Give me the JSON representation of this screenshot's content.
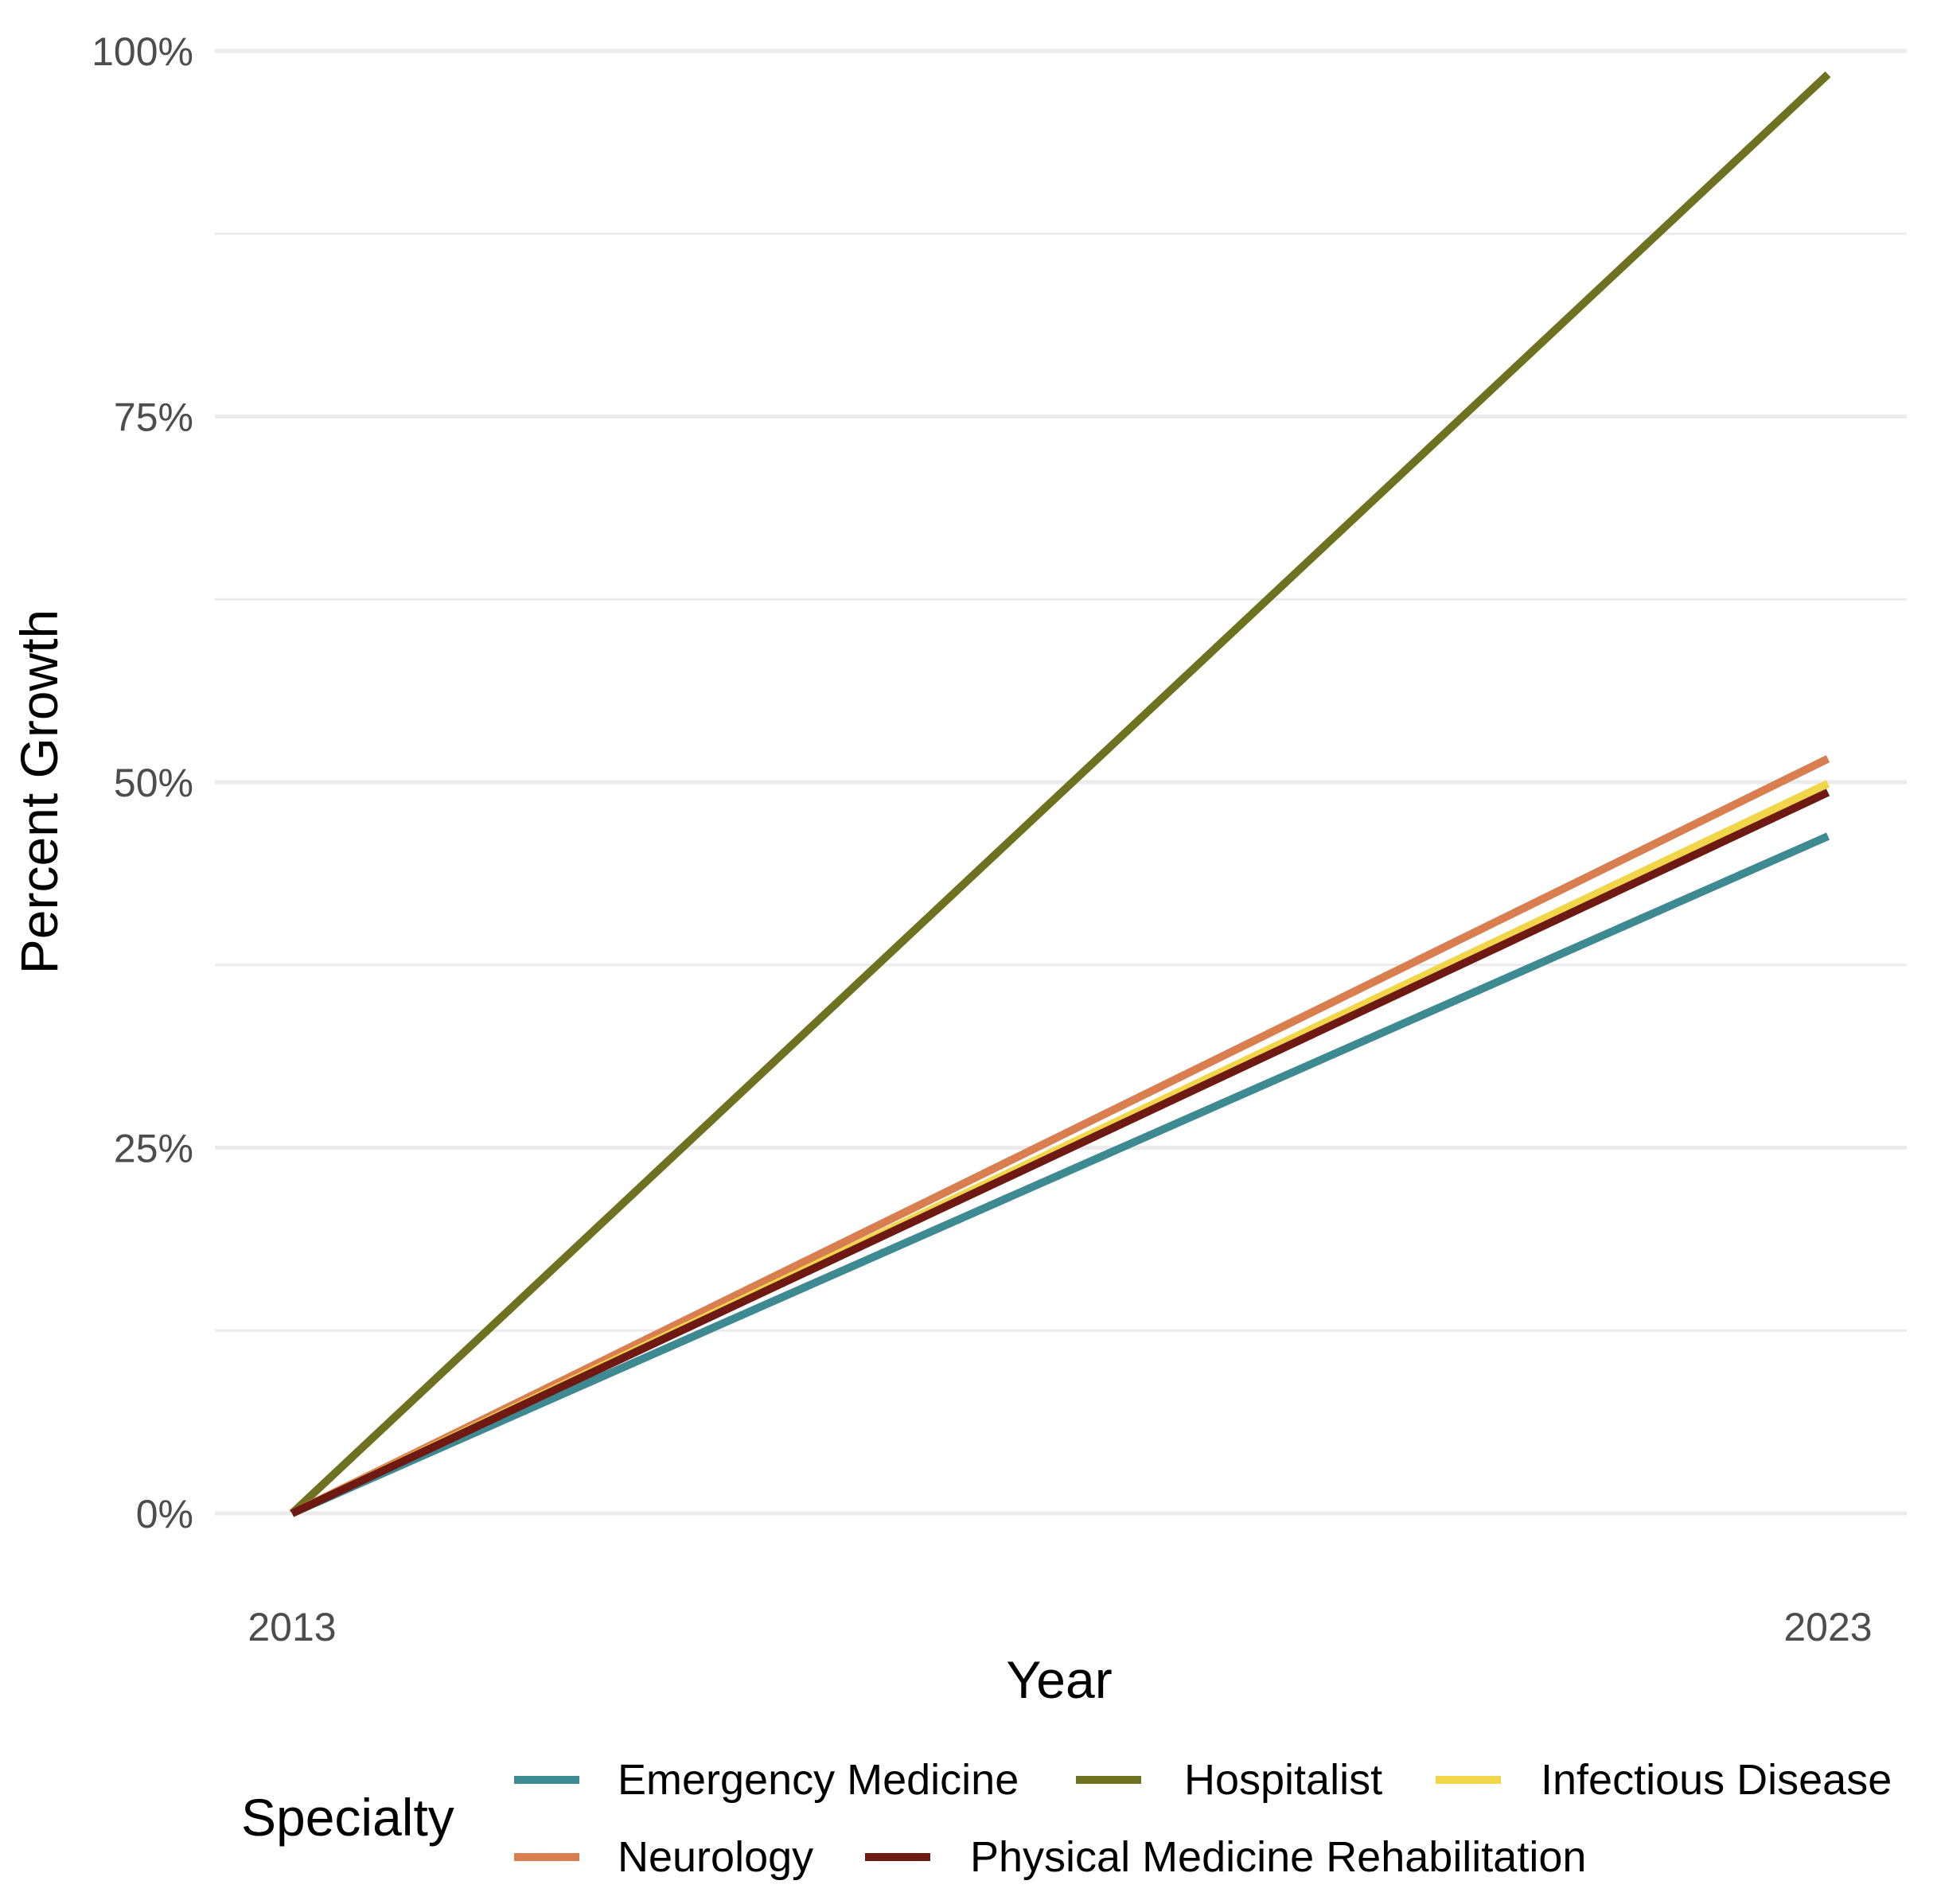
{
  "chart_data": {
    "type": "line",
    "x": [
      "2013",
      "2023"
    ],
    "series": [
      {
        "name": "Emergency Medicine",
        "values": [
          0,
          46.3
        ],
        "color": "#3e8a93"
      },
      {
        "name": "Hospitalist",
        "values": [
          0,
          98.4
        ],
        "color": "#6e7220"
      },
      {
        "name": "Infectious Disease",
        "values": [
          0,
          49.9
        ],
        "color": "#f2d64a"
      },
      {
        "name": "Neurology",
        "values": [
          0,
          51.6
        ],
        "color": "#d97f4f"
      },
      {
        "name": "Physical Medicine Rehabilitation",
        "values": [
          0,
          49.3
        ],
        "color": "#6e1a12"
      }
    ],
    "xlabel": "Year",
    "ylabel": "Percent Growth",
    "ylim": [
      0,
      100
    ],
    "yticks": [
      0,
      25,
      50,
      75,
      100
    ],
    "ytick_labels": [
      "0%",
      "25%",
      "50%",
      "75%",
      "100%"
    ],
    "xtick_labels": [
      "2013",
      "2023"
    ],
    "grid": true,
    "legend": {
      "title": "Specialty",
      "position": "bottom",
      "items": [
        "Emergency Medicine",
        "Hospitalist",
        "Infectious Disease",
        "Neurology",
        "Physical Medicine Rehabilitation"
      ]
    }
  }
}
